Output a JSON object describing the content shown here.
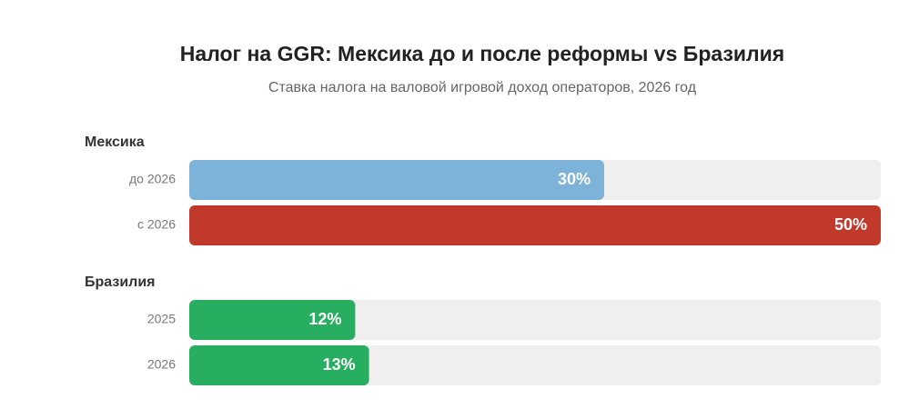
{
  "chart_data": {
    "type": "bar",
    "orientation": "horizontal",
    "title": "Налог на GGR: Мексика до и после реформы vs Бразилия",
    "subtitle": "Ставка налога на валовой игровой доход операторов, 2026 год",
    "xlim": [
      0,
      50
    ],
    "groups": [
      {
        "name": "Мексика",
        "categories": [
          "до 2026",
          "с 2026"
        ],
        "values": [
          30,
          50
        ],
        "value_labels": [
          "30%",
          "50%"
        ],
        "colors": [
          "#7eb3d9",
          "#c0392b"
        ]
      },
      {
        "name": "Бразилия",
        "categories": [
          "2025",
          "2026"
        ],
        "values": [
          12,
          13
        ],
        "value_labels": [
          "12%",
          "13%"
        ],
        "colors": [
          "#27ae60",
          "#27ae60"
        ]
      }
    ]
  }
}
